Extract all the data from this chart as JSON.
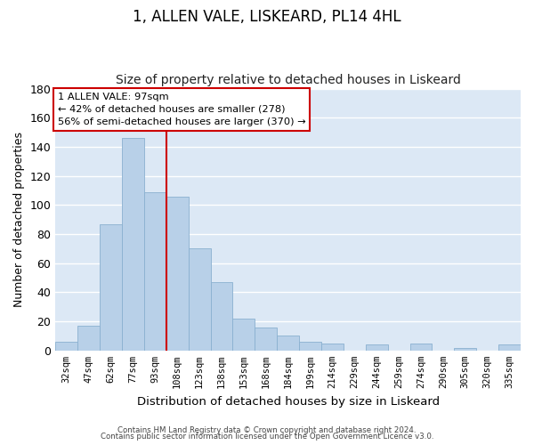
{
  "title": "1, ALLEN VALE, LISKEARD, PL14 4HL",
  "subtitle": "Size of property relative to detached houses in Liskeard",
  "xlabel": "Distribution of detached houses by size in Liskeard",
  "ylabel": "Number of detached properties",
  "bar_labels": [
    "32sqm",
    "47sqm",
    "62sqm",
    "77sqm",
    "93sqm",
    "108sqm",
    "123sqm",
    "138sqm",
    "153sqm",
    "168sqm",
    "184sqm",
    "199sqm",
    "214sqm",
    "229sqm",
    "244sqm",
    "259sqm",
    "274sqm",
    "290sqm",
    "305sqm",
    "320sqm",
    "335sqm"
  ],
  "bar_values": [
    6,
    17,
    87,
    146,
    109,
    106,
    70,
    47,
    22,
    16,
    10,
    6,
    5,
    0,
    4,
    0,
    5,
    0,
    2,
    0,
    4
  ],
  "bar_color": "#b8d0e8",
  "bar_edge_color": "#8ab0d0",
  "ylim": [
    0,
    180
  ],
  "yticks": [
    0,
    20,
    40,
    60,
    80,
    100,
    120,
    140,
    160,
    180
  ],
  "vline_x": 4.5,
  "vline_color": "#cc0000",
  "annotation_title": "1 ALLEN VALE: 97sqm",
  "annotation_line1": "← 42% of detached houses are smaller (278)",
  "annotation_line2": "56% of semi-detached houses are larger (370) →",
  "annotation_box_color": "#ffffff",
  "annotation_box_edge": "#cc0000",
  "footer_line1": "Contains HM Land Registry data © Crown copyright and database right 2024.",
  "footer_line2": "Contains public sector information licensed under the Open Government Licence v3.0.",
  "background_color": "#dce8f5",
  "plot_area_color": "#dce8f5",
  "title_fontsize": 12,
  "subtitle_fontsize": 10
}
